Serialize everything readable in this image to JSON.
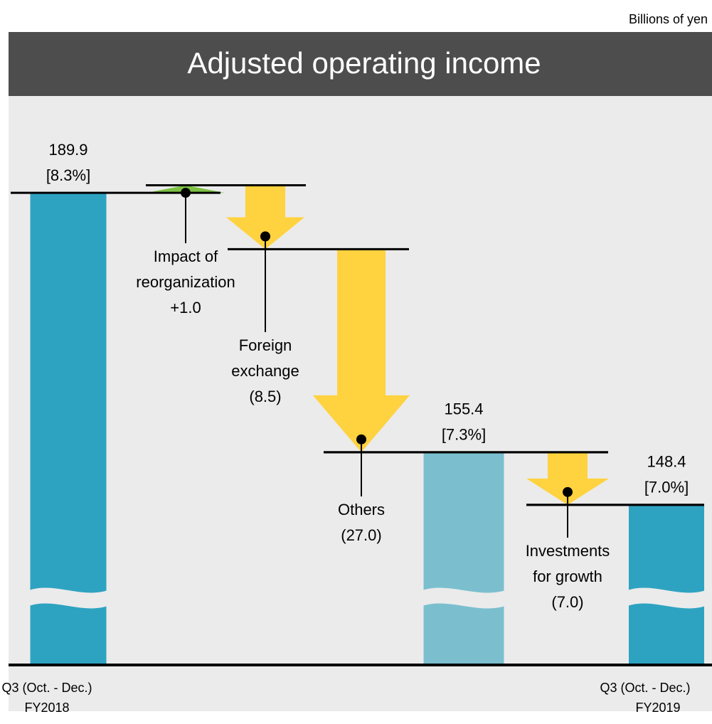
{
  "chart_data": {
    "type": "waterfall",
    "title": "Adjusted operating income",
    "unit": "Billions of yen",
    "categories": [
      [
        "Q3 (Oct. - Dec.)",
        "FY2018"
      ],
      [
        "Impact of",
        "reorganization"
      ],
      [
        "Foreign",
        "exchange"
      ],
      [
        "Others"
      ],
      null,
      [
        "Investments",
        "for growth"
      ],
      [
        "Q3 (Oct. - Dec.)",
        "FY2019"
      ]
    ],
    "kinds": [
      "total",
      "delta",
      "delta",
      "delta",
      "total",
      "delta",
      "total"
    ],
    "values": [
      189.9,
      1.0,
      -8.5,
      -27.0,
      155.4,
      -7.0,
      148.4
    ],
    "value_labels": [
      "189.9",
      "+1.0",
      "(8.5)",
      "(27.0)",
      "155.4",
      "(7.0)",
      "148.4"
    ],
    "margin_labels": [
      "[8.3%]",
      null,
      null,
      null,
      "[7.3%]",
      null,
      "[7.0%]"
    ],
    "colors": [
      "#2ea3c1",
      "#7dc142",
      "#ffd23f",
      "#ffd23f",
      "#7bbfcf",
      "#ffd23f",
      "#2ea3c1"
    ],
    "ylim": [
      127.1,
      202.3
    ]
  }
}
